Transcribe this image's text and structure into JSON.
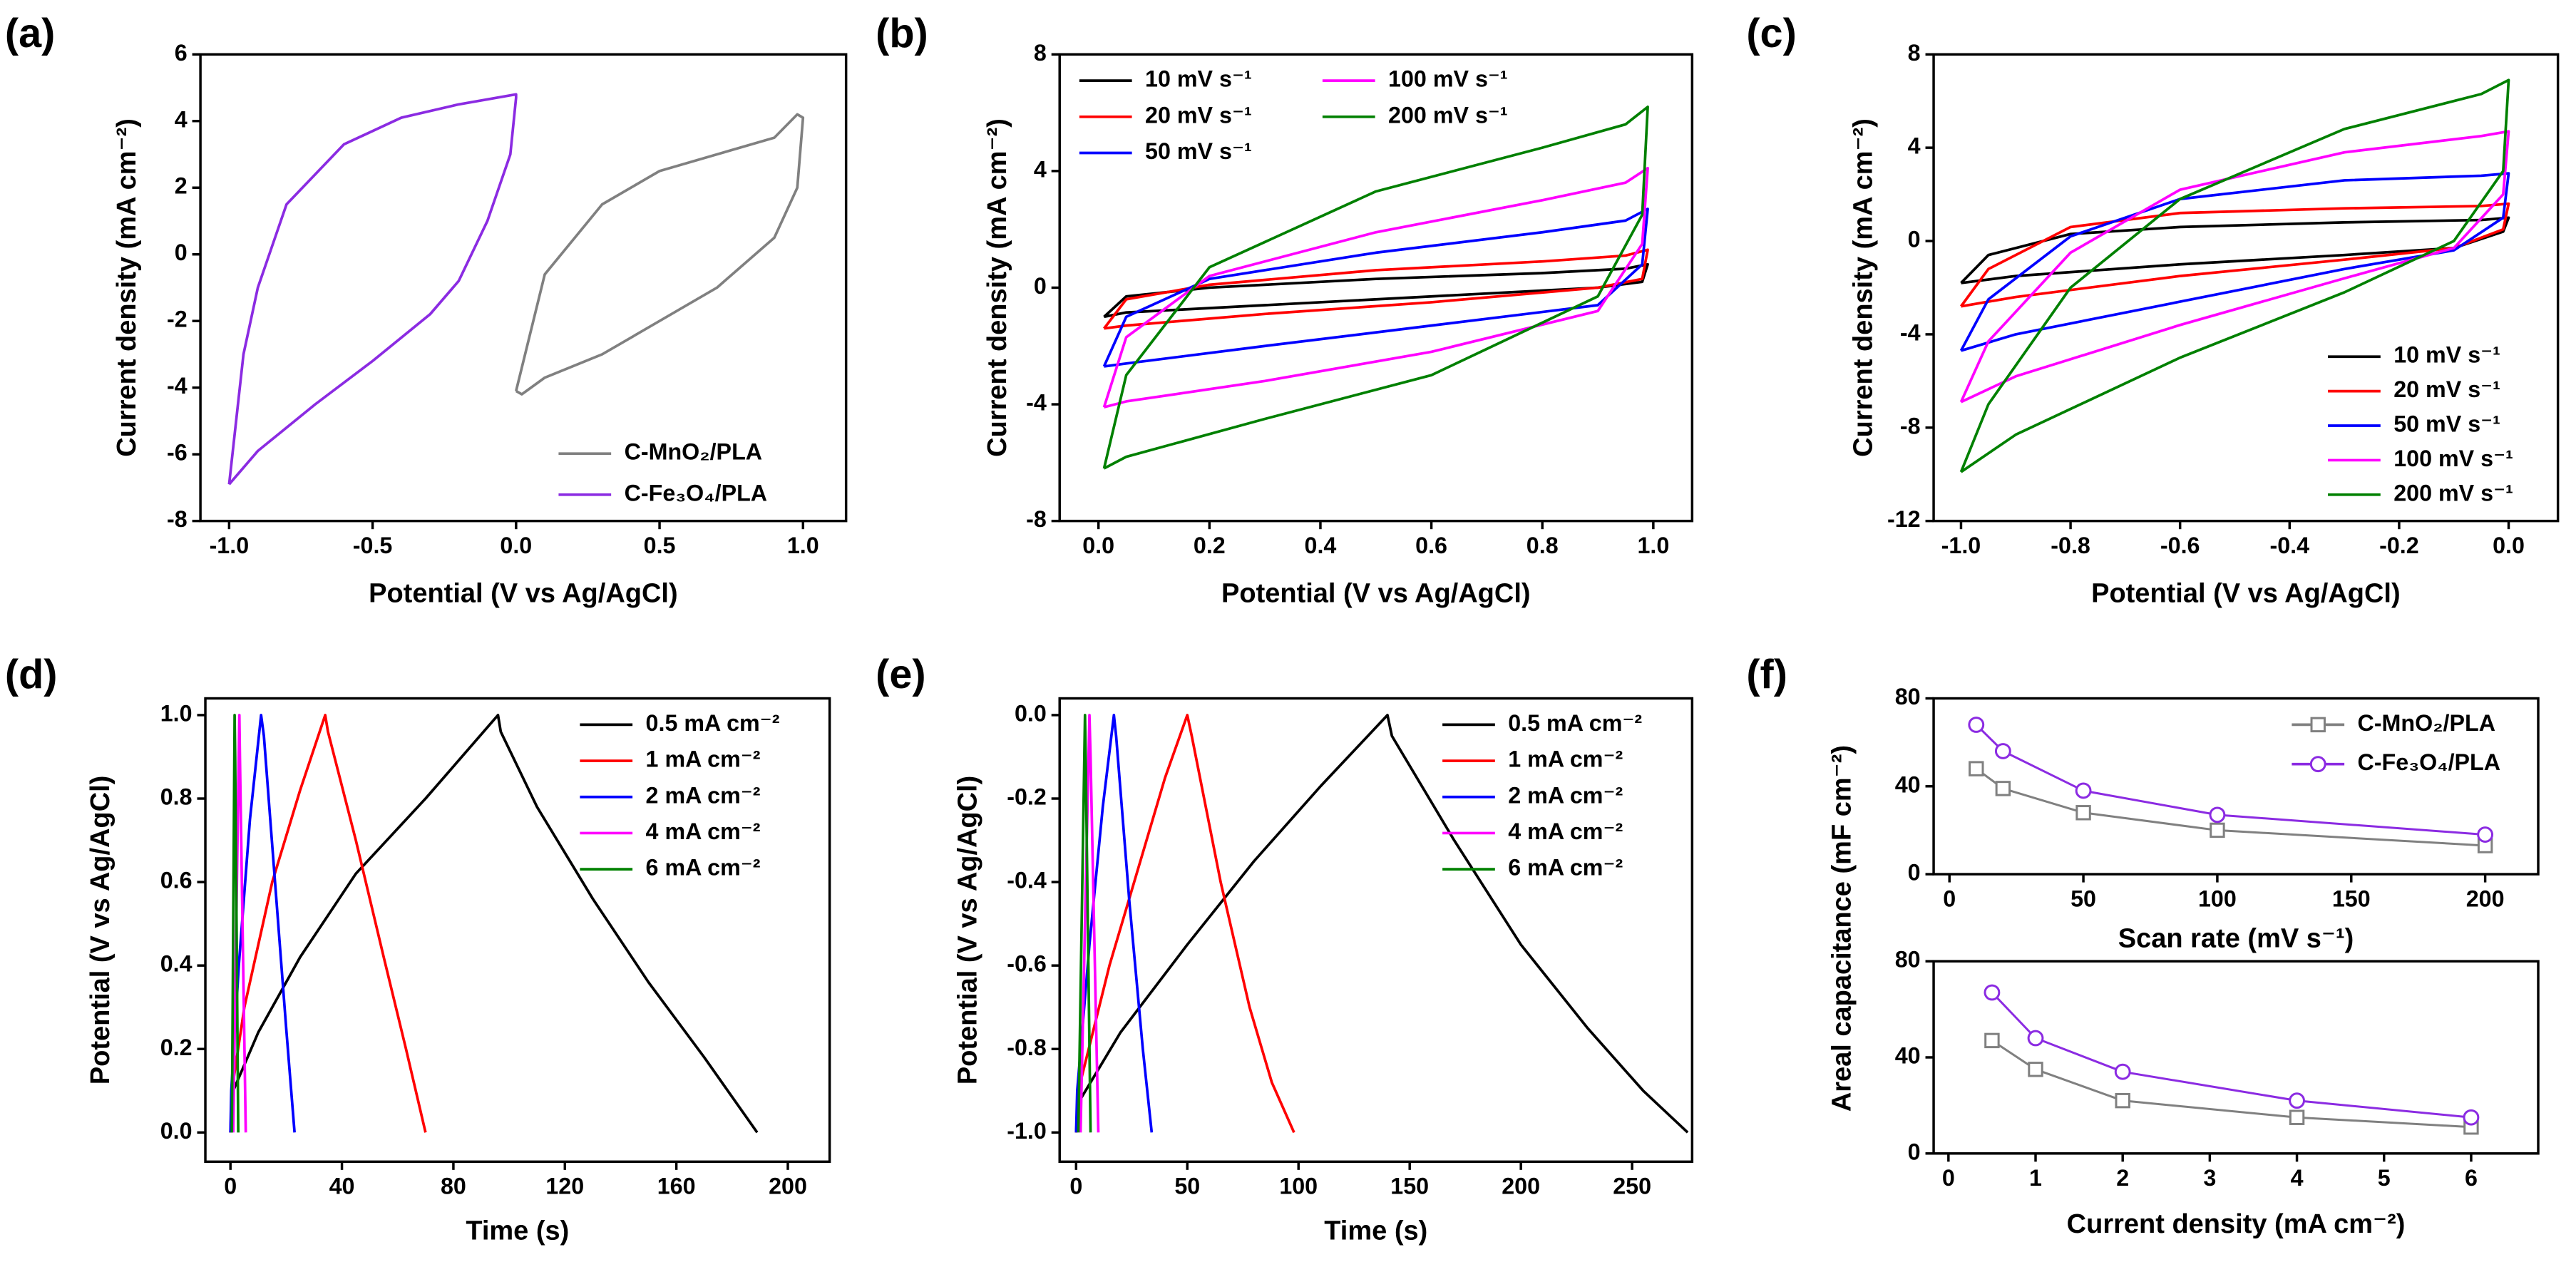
{
  "chart_data": [
    {
      "type": "line",
      "label": "(a)",
      "xlabel": "Potential (V vs Ag/AgCl)",
      "ylabel": "Current density (mA cm⁻²)",
      "xlim": [
        -1.1,
        1.15
      ],
      "ylim": [
        -8,
        6
      ],
      "xticks": [
        {
          "value": -1.0,
          "label": "-1.0"
        },
        -0.5,
        {
          "value": 0,
          "label": "0.0"
        },
        0.5,
        {
          "value": 1.0,
          "label": "1.0"
        }
      ],
      "yticks": [
        -8,
        -6,
        -4,
        -2,
        0,
        2,
        4,
        6
      ],
      "legend": "lower right",
      "series": [
        {
          "name": "C-MnO₂/PLA",
          "color": "#808080",
          "x": [
            0.0,
            0.1,
            0.3,
            0.5,
            0.7,
            0.9,
            0.98,
            1.0,
            0.98,
            0.9,
            0.7,
            0.5,
            0.3,
            0.1,
            0.02,
            0.0
          ],
          "values": [
            -4.1,
            -0.6,
            1.5,
            2.5,
            3.0,
            3.5,
            4.2,
            4.1,
            2.0,
            0.5,
            -1.0,
            -2.0,
            -3.0,
            -3.7,
            -4.2,
            -4.1
          ]
        },
        {
          "name": "C-Fe₃O₄/PLA",
          "color": "#8B2BE2",
          "x": [
            -1.0,
            -0.95,
            -0.9,
            -0.8,
            -0.6,
            -0.4,
            -0.2,
            0.0,
            0.0,
            -0.02,
            -0.1,
            -0.2,
            -0.3,
            -0.5,
            -0.7,
            -0.9,
            -1.0
          ],
          "values": [
            -6.9,
            -3.0,
            -1.0,
            1.5,
            3.3,
            4.1,
            4.5,
            4.8,
            4.7,
            3.0,
            1.0,
            -0.8,
            -1.8,
            -3.2,
            -4.5,
            -5.9,
            -6.9
          ]
        }
      ]
    },
    {
      "type": "line",
      "label": "(b)",
      "xlabel": "Potential (V vs Ag/AgCl)",
      "ylabel": "Current density (mA cm⁻²)",
      "xlim": [
        -0.07,
        1.07
      ],
      "ylim": [
        -8,
        8
      ],
      "xticks": [
        {
          "value": 0,
          "label": "0.0"
        },
        0.2,
        0.4,
        0.6,
        0.8,
        {
          "value": 1.0,
          "label": "1.0"
        }
      ],
      "yticks": [
        -8,
        -4,
        0,
        4,
        8
      ],
      "legend": "upper left",
      "legend_columns": 2,
      "series": [
        {
          "name": "10 mV s⁻¹",
          "color": "#000000",
          "x": [
            0.01,
            0.05,
            0.2,
            0.5,
            0.8,
            0.95,
            0.99,
            0.98,
            0.9,
            0.6,
            0.3,
            0.05,
            0.01
          ],
          "values": [
            -1.0,
            -0.3,
            0.0,
            0.3,
            0.5,
            0.65,
            0.8,
            0.2,
            0.0,
            -0.3,
            -0.6,
            -0.85,
            -1.0
          ]
        },
        {
          "name": "20 mV s⁻¹",
          "color": "#ff0000",
          "x": [
            0.01,
            0.05,
            0.2,
            0.5,
            0.8,
            0.95,
            0.99,
            0.98,
            0.9,
            0.6,
            0.3,
            0.05,
            0.01
          ],
          "values": [
            -1.4,
            -0.4,
            0.1,
            0.6,
            0.9,
            1.1,
            1.3,
            0.3,
            0.0,
            -0.5,
            -0.9,
            -1.3,
            -1.4
          ]
        },
        {
          "name": "50 mV s⁻¹",
          "color": "#0000ff",
          "x": [
            0.01,
            0.05,
            0.2,
            0.5,
            0.8,
            0.95,
            0.99,
            0.98,
            0.9,
            0.6,
            0.3,
            0.05,
            0.01
          ],
          "values": [
            -2.7,
            -1.0,
            0.3,
            1.2,
            1.9,
            2.3,
            2.7,
            0.8,
            -0.6,
            -1.3,
            -2.0,
            -2.6,
            -2.7
          ]
        },
        {
          "name": "100 mV s⁻¹",
          "color": "#ff00ff",
          "x": [
            0.01,
            0.05,
            0.2,
            0.5,
            0.8,
            0.95,
            0.99,
            0.98,
            0.9,
            0.6,
            0.3,
            0.05,
            0.01
          ],
          "values": [
            -4.1,
            -1.7,
            0.4,
            1.9,
            3.0,
            3.6,
            4.1,
            1.5,
            -0.8,
            -2.2,
            -3.2,
            -3.9,
            -4.1
          ]
        },
        {
          "name": "200 mV s⁻¹",
          "color": "#008000",
          "x": [
            0.01,
            0.05,
            0.2,
            0.5,
            0.8,
            0.95,
            0.99,
            0.98,
            0.9,
            0.6,
            0.3,
            0.05,
            0.01
          ],
          "values": [
            -6.2,
            -3.0,
            0.7,
            3.3,
            4.8,
            5.6,
            6.2,
            2.5,
            -0.3,
            -3.0,
            -4.5,
            -5.8,
            -6.2
          ]
        }
      ]
    },
    {
      "type": "line",
      "label": "(c)",
      "xlabel": "Potential (V vs Ag/AgCl)",
      "ylabel": "Current density (mA cm⁻²)",
      "xlim": [
        -1.05,
        0.09
      ],
      "ylim": [
        -12,
        8
      ],
      "xticks": [
        {
          "value": -1.0,
          "label": "-1.0"
        },
        -0.8,
        -0.6,
        -0.4,
        -0.2,
        {
          "value": 0,
          "label": "0.0"
        }
      ],
      "yticks": [
        -12,
        -8,
        -4,
        0,
        4,
        8
      ],
      "legend": "lower right",
      "series": [
        {
          "name": "10 mV s⁻¹",
          "color": "#000000",
          "x": [
            -1.0,
            -0.95,
            -0.8,
            -0.6,
            -0.3,
            -0.05,
            0.0,
            -0.01,
            -0.1,
            -0.3,
            -0.6,
            -0.9,
            -1.0
          ],
          "values": [
            -1.8,
            -0.6,
            0.3,
            0.6,
            0.8,
            0.9,
            1.0,
            0.4,
            -0.3,
            -0.6,
            -1.0,
            -1.5,
            -1.8
          ]
        },
        {
          "name": "20 mV s⁻¹",
          "color": "#ff0000",
          "x": [
            -1.0,
            -0.95,
            -0.8,
            -0.6,
            -0.3,
            -0.05,
            0.0,
            -0.01,
            -0.1,
            -0.3,
            -0.6,
            -0.9,
            -1.0
          ],
          "values": [
            -2.8,
            -1.2,
            0.6,
            1.2,
            1.4,
            1.5,
            1.6,
            0.5,
            -0.3,
            -0.8,
            -1.5,
            -2.4,
            -2.8
          ]
        },
        {
          "name": "50 mV s⁻¹",
          "color": "#0000ff",
          "x": [
            -1.0,
            -0.95,
            -0.8,
            -0.6,
            -0.3,
            -0.05,
            0.0,
            -0.01,
            -0.1,
            -0.3,
            -0.6,
            -0.9,
            -1.0
          ],
          "values": [
            -4.7,
            -2.5,
            0.2,
            1.8,
            2.6,
            2.8,
            2.9,
            1.0,
            -0.4,
            -1.2,
            -2.6,
            -4.0,
            -4.7
          ]
        },
        {
          "name": "100 mV s⁻¹",
          "color": "#ff00ff",
          "x": [
            -1.0,
            -0.95,
            -0.8,
            -0.6,
            -0.3,
            -0.05,
            0.0,
            -0.01,
            -0.1,
            -0.3,
            -0.6,
            -0.9,
            -1.0
          ],
          "values": [
            -6.9,
            -4.3,
            -0.5,
            2.2,
            3.8,
            4.5,
            4.7,
            2.0,
            -0.3,
            -1.6,
            -3.6,
            -5.8,
            -6.9
          ]
        },
        {
          "name": "200 mV s⁻¹",
          "color": "#008000",
          "x": [
            -1.0,
            -0.95,
            -0.8,
            -0.6,
            -0.3,
            -0.05,
            0.0,
            -0.01,
            -0.1,
            -0.3,
            -0.6,
            -0.9,
            -1.0
          ],
          "values": [
            -9.9,
            -7.0,
            -2.0,
            1.8,
            4.8,
            6.3,
            6.9,
            3.0,
            0.0,
            -2.2,
            -5.0,
            -8.3,
            -9.9
          ]
        }
      ]
    },
    {
      "type": "line",
      "label": "(d)",
      "xlabel": "Time (s)",
      "ylabel": "Potential (V vs Ag/AgCl)",
      "xlim": [
        -9,
        215
      ],
      "ylim": [
        -0.07,
        1.04
      ],
      "xticks": [
        0,
        40,
        80,
        120,
        160,
        200
      ],
      "yticks": [
        {
          "value": 0,
          "label": "0.0"
        },
        0.2,
        0.4,
        0.6,
        0.8,
        {
          "value": 1.0,
          "label": "1.0"
        }
      ],
      "legend": "upper right",
      "series": [
        {
          "name": "0.5 mA cm⁻²",
          "color": "#000000",
          "x": [
            0,
            1,
            10,
            25,
            45,
            70,
            96,
            97,
            110,
            130,
            150,
            170,
            189
          ],
          "values": [
            0.0,
            0.1,
            0.24,
            0.42,
            0.62,
            0.8,
            1.0,
            0.96,
            0.78,
            0.56,
            0.36,
            0.18,
            0.0
          ]
        },
        {
          "name": "1 mA cm⁻²",
          "color": "#ff0000",
          "x": [
            0,
            0.5,
            5,
            15,
            25,
            34,
            35,
            45,
            55,
            63,
            70
          ],
          "values": [
            0.0,
            0.1,
            0.3,
            0.6,
            0.82,
            1.0,
            0.96,
            0.7,
            0.42,
            0.2,
            0.0
          ]
        },
        {
          "name": "2 mA cm⁻²",
          "color": "#0000ff",
          "x": [
            0,
            0.3,
            3,
            7,
            11,
            12,
            16,
            20,
            23
          ],
          "values": [
            0.0,
            0.1,
            0.4,
            0.75,
            1.0,
            0.95,
            0.6,
            0.25,
            0.0
          ]
        },
        {
          "name": "4 mA cm⁻²",
          "color": "#ff00ff",
          "x": [
            1,
            3.2,
            3.4,
            5.5
          ],
          "values": [
            0.0,
            1.0,
            0.9,
            0.0
          ]
        },
        {
          "name": "6 mA cm⁻²",
          "color": "#008000",
          "x": [
            0.5,
            1.5,
            1.7,
            2.8
          ],
          "values": [
            0.0,
            1.0,
            0.9,
            0.0
          ]
        }
      ]
    },
    {
      "type": "line",
      "label": "(e)",
      "xlabel": "Time (s)",
      "ylabel": "Potential (V vs Ag/AgCl)",
      "xlim": [
        -7.4,
        277
      ],
      "ylim": [
        -1.07,
        0.04
      ],
      "xticks": [
        0,
        50,
        100,
        150,
        200,
        250
      ],
      "yticks": [
        {
          "value": -1.0,
          "label": "-1.0"
        },
        -0.8,
        -0.6,
        -0.4,
        -0.2,
        {
          "value": 0,
          "label": "0.0"
        }
      ],
      "legend": "upper right",
      "series": [
        {
          "name": "0.5 mA cm⁻²",
          "color": "#000000",
          "x": [
            0,
            2,
            20,
            50,
            80,
            110,
            140,
            142,
            170,
            200,
            230,
            255,
            275
          ],
          "values": [
            -1.0,
            -0.92,
            -0.76,
            -0.55,
            -0.35,
            -0.17,
            0.0,
            -0.05,
            -0.3,
            -0.55,
            -0.75,
            -0.9,
            -1.0
          ]
        },
        {
          "name": "1 mA cm⁻²",
          "color": "#ff0000",
          "x": [
            0,
            1,
            15,
            30,
            40,
            50,
            52,
            65,
            78,
            88,
            98
          ],
          "values": [
            -1.0,
            -0.9,
            -0.6,
            -0.33,
            -0.15,
            0.0,
            -0.05,
            -0.4,
            -0.7,
            -0.88,
            -1.0
          ]
        },
        {
          "name": "2 mA cm⁻²",
          "color": "#0000ff",
          "x": [
            0,
            0.5,
            6,
            12,
            17,
            18,
            24,
            30,
            34
          ],
          "values": [
            -1.0,
            -0.9,
            -0.55,
            -0.22,
            0.0,
            -0.05,
            -0.45,
            -0.8,
            -1.0
          ]
        },
        {
          "name": "4 mA cm⁻²",
          "color": "#ff00ff",
          "x": [
            2,
            6,
            6.5,
            10
          ],
          "values": [
            -1.0,
            0.0,
            -0.1,
            -1.0
          ]
        },
        {
          "name": "6 mA cm⁻²",
          "color": "#008000",
          "x": [
            1,
            4,
            4.3,
            6.5
          ],
          "values": [
            -1.0,
            0.0,
            -0.1,
            -1.0
          ]
        }
      ]
    },
    {
      "type": "line",
      "label": "(f)",
      "xlabel": "Scan rate (mV s⁻¹)",
      "ylabel": "Areal capacitance (mF cm⁻²)",
      "xlim": [
        -5.9,
        219.8
      ],
      "ylim": [
        0,
        80
      ],
      "xticks": [
        0,
        50,
        100,
        150,
        200
      ],
      "yticks": [
        0,
        40,
        80
      ],
      "legend": "upper right",
      "series": [
        {
          "name": "C-MnO₂/PLA",
          "color": "#808080",
          "marker": "square",
          "x": [
            10,
            20,
            50,
            100,
            200
          ],
          "values": [
            48,
            39,
            28,
            20,
            13
          ]
        },
        {
          "name": "C-Fe₃O₄/PLA",
          "color": "#8B2BE2",
          "marker": "circle",
          "x": [
            10,
            20,
            50,
            100,
            200
          ],
          "values": [
            68,
            56,
            38,
            27,
            18
          ]
        }
      ]
    },
    {
      "type": "line",
      "xlabel": "Current density (mA cm⁻²)",
      "xlim": [
        -0.17,
        6.77
      ],
      "ylim": [
        0,
        80
      ],
      "xticks": [
        0,
        1,
        2,
        3,
        4,
        5,
        6
      ],
      "yticks": [
        0,
        40,
        80
      ],
      "series": [
        {
          "color": "#808080",
          "marker": "square",
          "x": [
            0.5,
            1,
            2,
            4,
            6
          ],
          "values": [
            47,
            35,
            22,
            15,
            11
          ]
        },
        {
          "color": "#8B2BE2",
          "marker": "circle",
          "x": [
            0.5,
            1,
            2,
            4,
            6
          ],
          "values": [
            67,
            48,
            34,
            22,
            15
          ]
        }
      ]
    }
  ]
}
